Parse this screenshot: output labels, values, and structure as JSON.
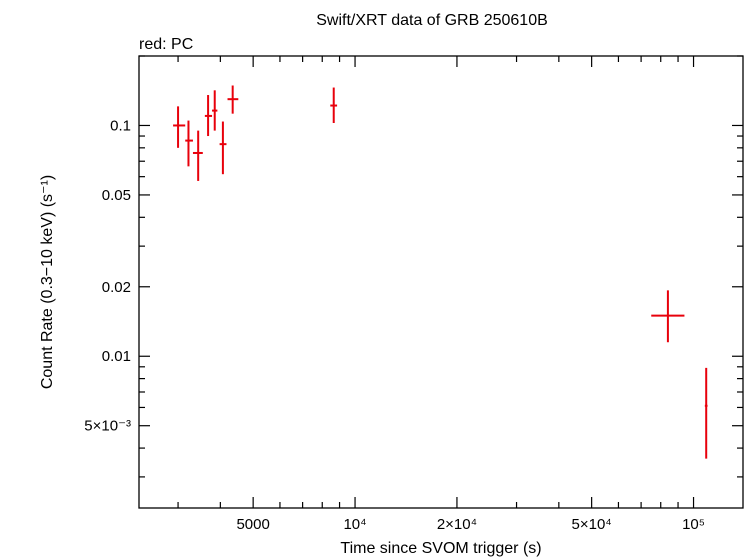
{
  "chart_data": {
    "type": "scatter",
    "title": "Swift/XRT data of GRB 250610B",
    "subtitle": "red: PC",
    "xlabel": "Time since SVOM trigger (s)",
    "ylabel": "Count Rate (0.3−10 keV) (s⁻¹)",
    "x_scale": "log",
    "y_scale": "log",
    "xlim": [
      2300,
      140000
    ],
    "ylim": [
      0.0022,
      0.2
    ],
    "x_ticks": [
      {
        "value": 5000,
        "label": "5000"
      },
      {
        "value": 10000,
        "label": "10⁴"
      },
      {
        "value": 20000,
        "label": "2×10⁴"
      },
      {
        "value": 50000,
        "label": "5×10⁴"
      },
      {
        "value": 100000,
        "label": "10⁵"
      }
    ],
    "y_ticks": [
      {
        "value": 0.1,
        "label": "0.1"
      },
      {
        "value": 0.05,
        "label": "0.05"
      },
      {
        "value": 0.02,
        "label": "0.02"
      },
      {
        "value": 0.01,
        "label": "0.01"
      },
      {
        "value": 0.005,
        "label": "5×10⁻³"
      }
    ],
    "grid": false,
    "color": "#e8000b",
    "series": [
      {
        "points": [
          {
            "x": 3000,
            "xlo": 2900,
            "xhi": 3150,
            "y": 0.1,
            "ylo": 0.08,
            "yhi": 0.121
          },
          {
            "x": 3220,
            "xlo": 3150,
            "xhi": 3320,
            "y": 0.086,
            "ylo": 0.0665,
            "yhi": 0.105
          },
          {
            "x": 3440,
            "xlo": 3320,
            "xhi": 3550,
            "y": 0.076,
            "ylo": 0.0575,
            "yhi": 0.095
          },
          {
            "x": 3680,
            "xlo": 3600,
            "xhi": 3780,
            "y": 0.11,
            "ylo": 0.09,
            "yhi": 0.1355
          },
          {
            "x": 3850,
            "xlo": 3780,
            "xhi": 3920,
            "y": 0.116,
            "ylo": 0.095,
            "yhi": 0.142
          },
          {
            "x": 4070,
            "xlo": 3980,
            "xhi": 4170,
            "y": 0.083,
            "ylo": 0.0615,
            "yhi": 0.104
          },
          {
            "x": 4350,
            "xlo": 4200,
            "xhi": 4520,
            "y": 0.13,
            "ylo": 0.1125,
            "yhi": 0.149
          },
          {
            "x": 8650,
            "xlo": 8450,
            "xhi": 8850,
            "y": 0.122,
            "ylo": 0.1025,
            "yhi": 0.146
          },
          {
            "x": 84000,
            "xlo": 75000,
            "xhi": 94000,
            "y": 0.015,
            "ylo": 0.0115,
            "yhi": 0.0193
          },
          {
            "x": 109000,
            "xlo": 108000,
            "xhi": 110000,
            "y": 0.0061,
            "ylo": 0.0036,
            "yhi": 0.0089
          }
        ]
      }
    ]
  }
}
